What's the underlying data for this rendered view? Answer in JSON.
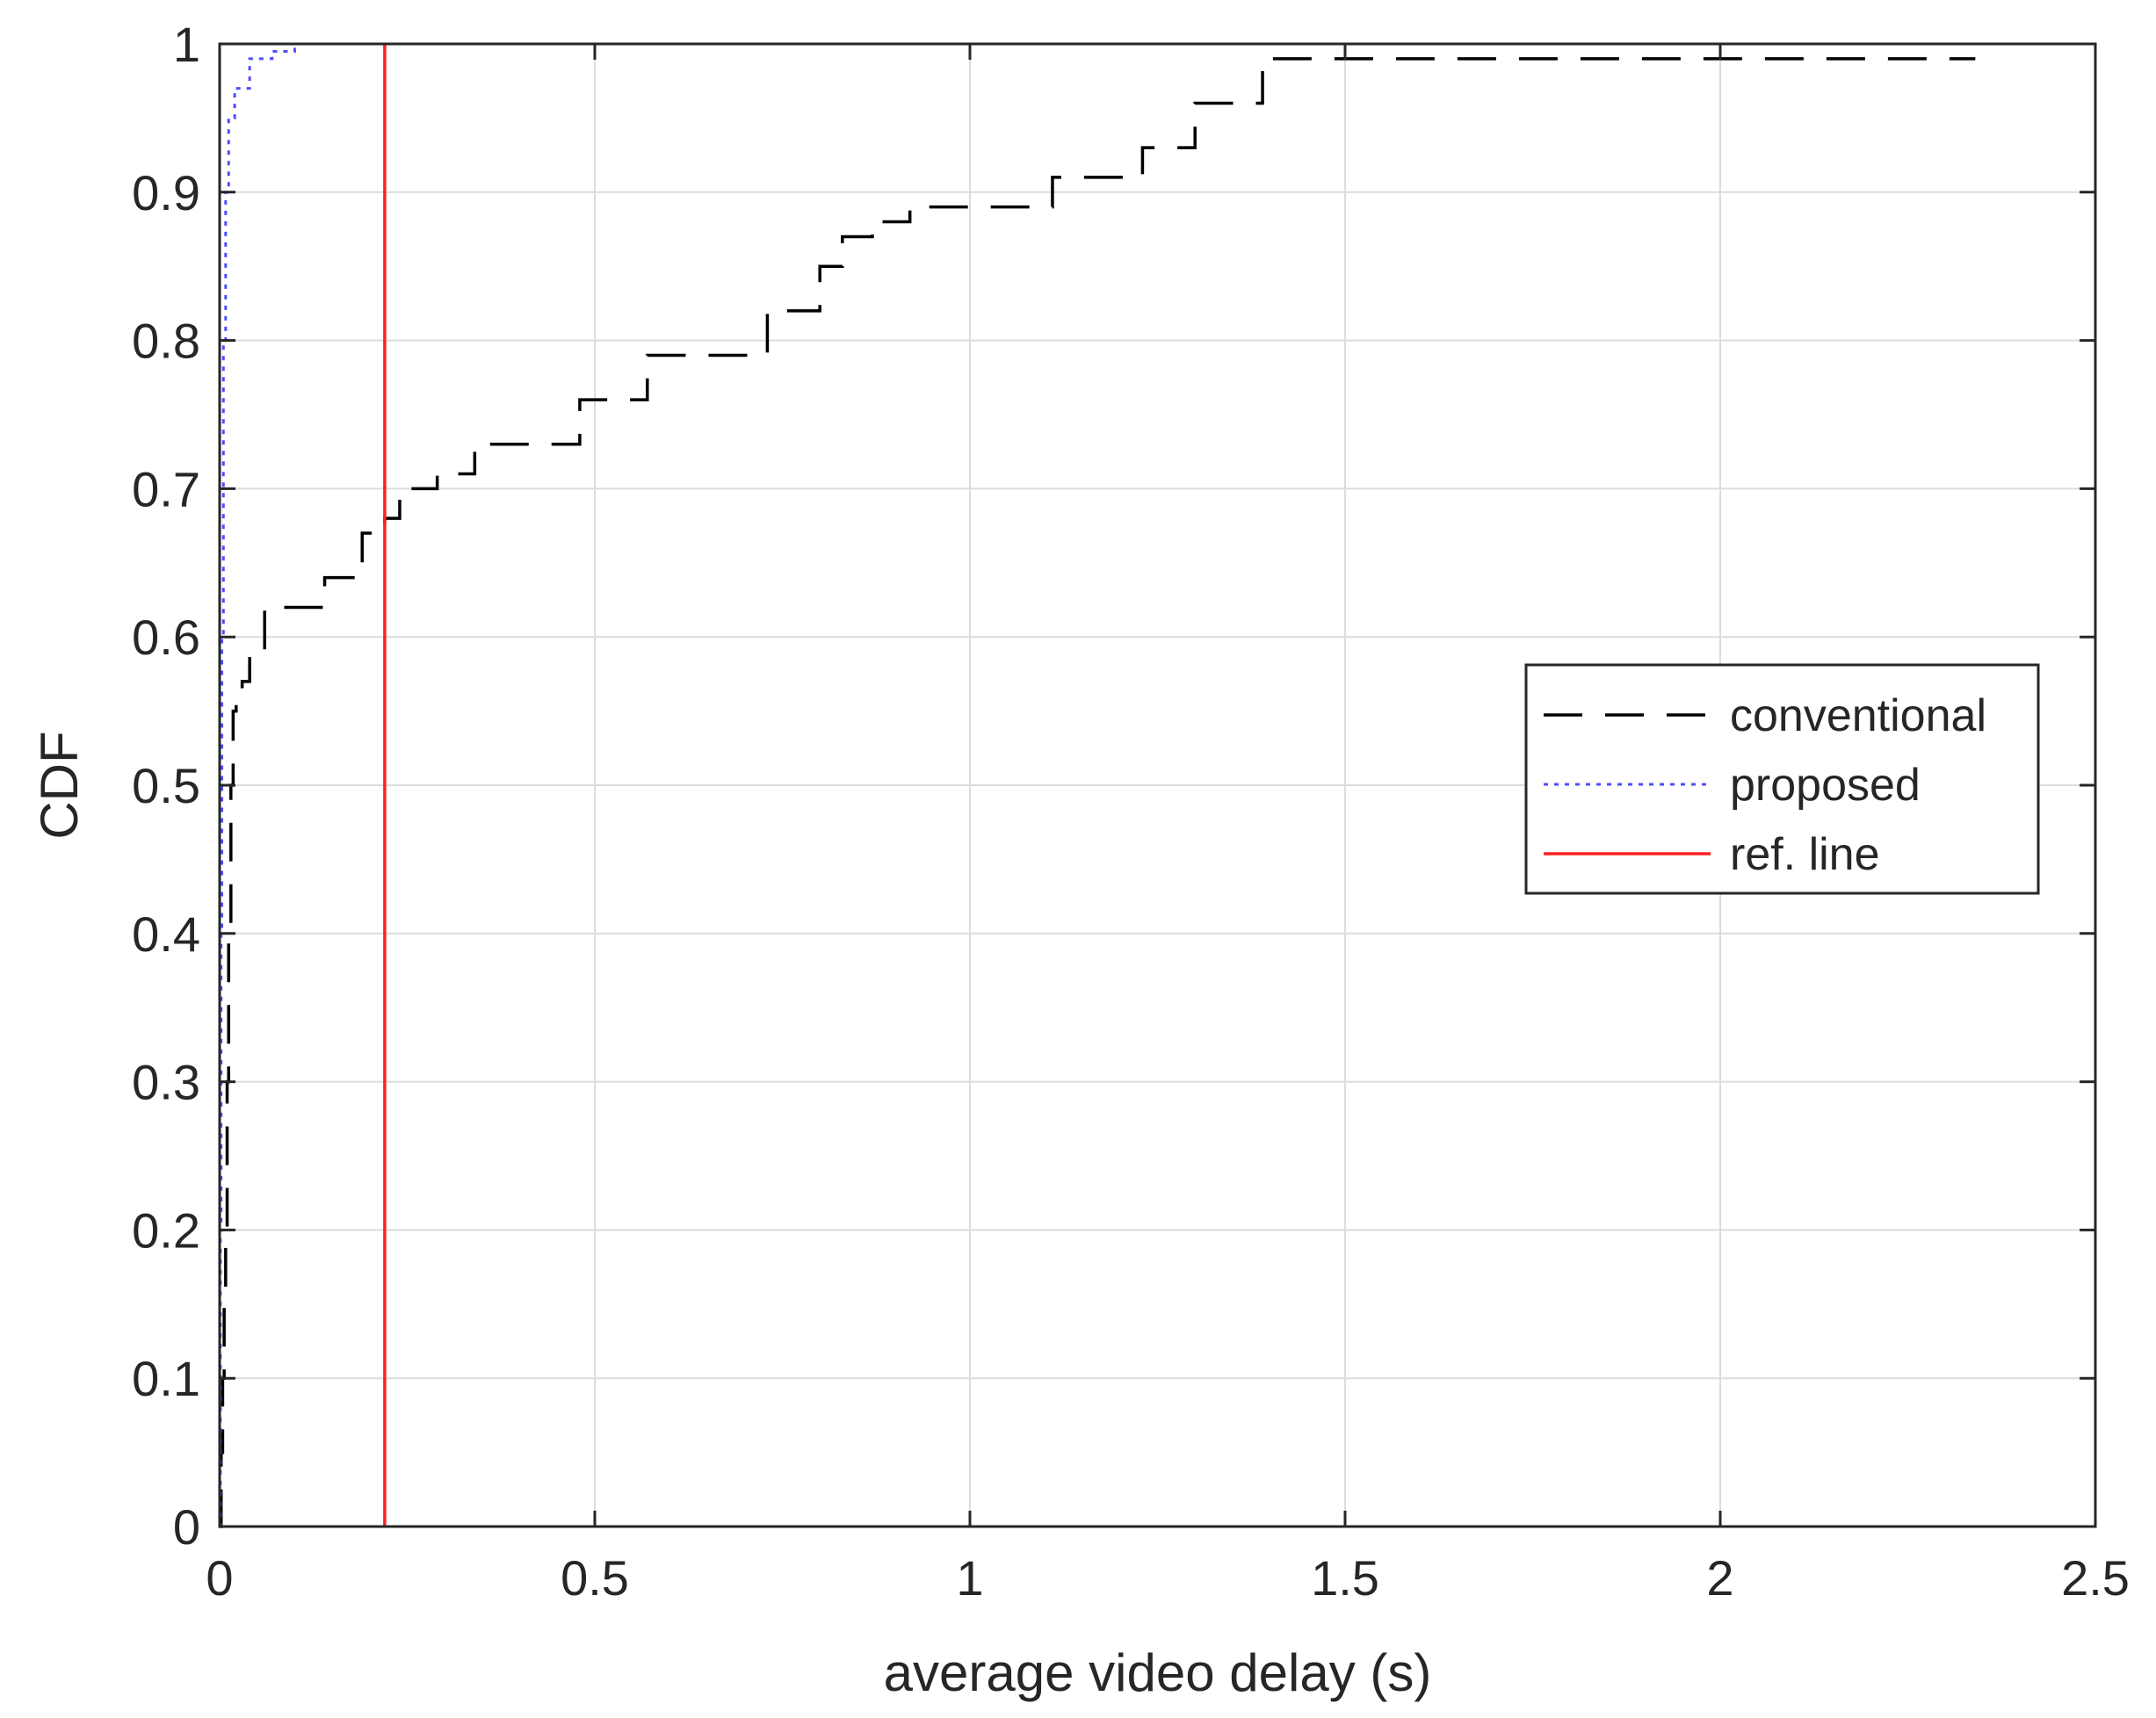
{
  "chart_data": {
    "type": "line",
    "title": "",
    "xlabel": "average video delay (s)",
    "ylabel": "CDF",
    "xlim": [
      0,
      2.5
    ],
    "ylim": [
      0,
      1
    ],
    "xticks": [
      0,
      0.5,
      1,
      1.5,
      2,
      2.5
    ],
    "xtick_labels": [
      "0",
      "0.5",
      "1",
      "1.5",
      "2",
      "2.5"
    ],
    "yticks": [
      0,
      0.1,
      0.2,
      0.3,
      0.4,
      0.5,
      0.6,
      0.7,
      0.8,
      0.9,
      1
    ],
    "ytick_labels": [
      "0",
      "0.1",
      "0.2",
      "0.3",
      "0.4",
      "0.5",
      "0.6",
      "0.7",
      "0.8",
      "0.9",
      "1"
    ],
    "grid": true,
    "legend_position": "right",
    "series": [
      {
        "name": "conventional",
        "style": "dashed",
        "color": "#000000",
        "x": [
          0,
          0.002,
          0.004,
          0.006,
          0.008,
          0.01,
          0.012,
          0.015,
          0.018,
          0.022,
          0.03,
          0.04,
          0.06,
          0.1,
          0.14,
          0.19,
          0.22,
          0.24,
          0.29,
          0.34,
          0.48,
          0.57,
          0.68,
          0.73,
          0.8,
          0.83,
          0.87,
          0.92,
          1.05,
          1.11,
          1.23,
          1.3,
          1.39,
          2.34
        ],
        "y": [
          0,
          0.05,
          0.1,
          0.15,
          0.2,
          0.3,
          0.4,
          0.5,
          0.55,
          0.56,
          0.57,
          0.59,
          0.62,
          0.62,
          0.64,
          0.67,
          0.68,
          0.7,
          0.71,
          0.73,
          0.76,
          0.79,
          0.79,
          0.82,
          0.85,
          0.87,
          0.88,
          0.89,
          0.89,
          0.91,
          0.93,
          0.96,
          0.99,
          0.99
        ]
      },
      {
        "name": "proposed",
        "style": "dotted",
        "color": "#4d4dff",
        "x": [
          0,
          0.001,
          0.002,
          0.003,
          0.005,
          0.008,
          0.012,
          0.02,
          0.04,
          0.07,
          0.1,
          0.11
        ],
        "y": [
          0,
          0.2,
          0.4,
          0.6,
          0.8,
          0.9,
          0.95,
          0.97,
          0.99,
          0.995,
          1.0,
          1.0
        ]
      },
      {
        "name": "ref. line",
        "style": "solid",
        "color": "#ff2020",
        "x": [
          0.22,
          0.22
        ],
        "y": [
          0,
          1
        ]
      }
    ]
  }
}
